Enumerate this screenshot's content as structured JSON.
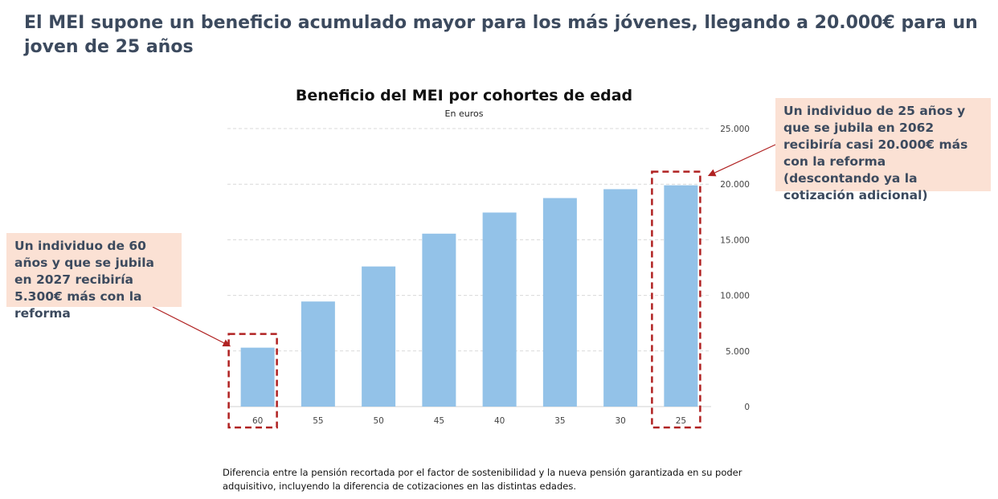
{
  "headline": "El MEI supone un beneficio acumulado mayor para los más jóvenes, llegando a 20.000€ para un joven de 25 años",
  "annotations": {
    "right": "Un individuo de 25 años y que se jubila en 2062 recibiría casi 20.000€ más con la reforma (descontando ya la cotización adicional)",
    "left": "Un individuo de 60 años y que se jubila en 2027 recibiría 5.300€ más con la reforma"
  },
  "footnote": "Diferencia entre la pensión recortada por el factor de sostenibilidad y la nueva pensión garantizada en su poder adquisitivo, incluyendo la diferencia de cotizaciones en las distintas edades.",
  "colors": {
    "bar": "#93c2e8",
    "highlight": "#b02222",
    "note_bg": "#fbe1d4",
    "headline": "#3c4a5e"
  },
  "chart_data": {
    "type": "bar",
    "title": "Beneficio del MEI por cohortes de edad",
    "subtitle": "En euros",
    "categories": [
      "60",
      "55",
      "50",
      "45",
      "40",
      "35",
      "30",
      "25"
    ],
    "values": [
      5300,
      9450,
      12600,
      15550,
      17450,
      18750,
      19550,
      19900
    ],
    "ylim": [
      0,
      25000
    ],
    "yticks": [
      0,
      5000,
      10000,
      15000,
      20000,
      25000
    ],
    "ytick_labels": [
      "0",
      "5.000",
      "10.000",
      "15.000",
      "20.000",
      "25.000"
    ],
    "y_axis_position": "right",
    "grid": true,
    "highlighted_categories": [
      "60",
      "25"
    ]
  }
}
